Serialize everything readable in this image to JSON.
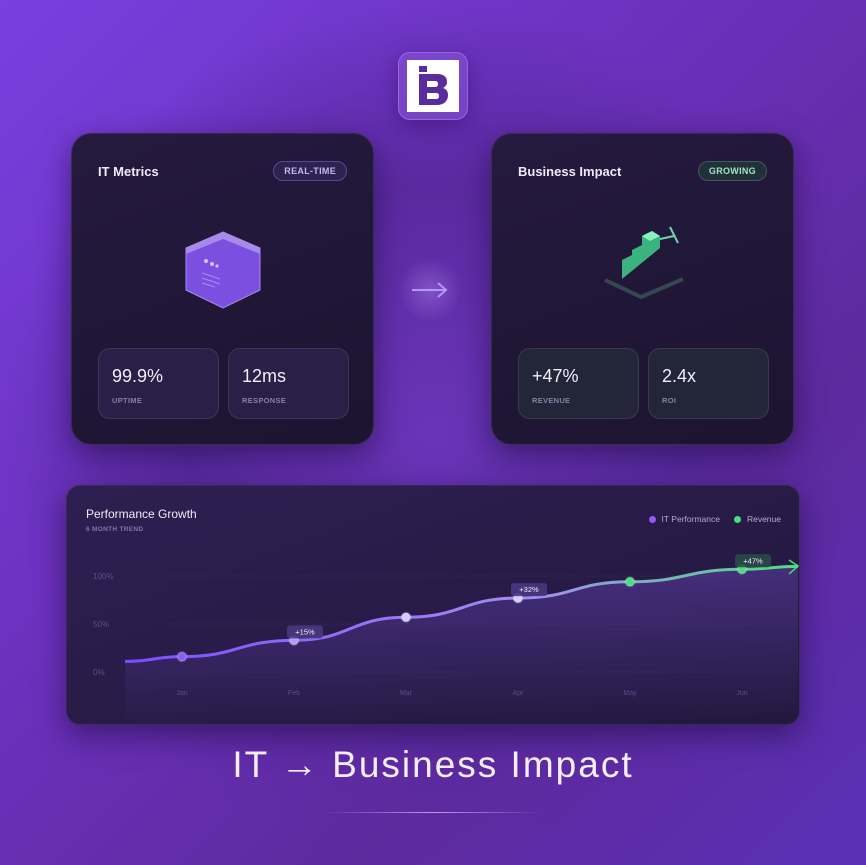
{
  "logo": {
    "letter": "B"
  },
  "it_card": {
    "title": "IT Metrics",
    "badge": "REAL-TIME",
    "icon": "hexagon-server-icon",
    "stats": [
      {
        "value": "99.9%",
        "label": "UPTIME"
      },
      {
        "value": "12ms",
        "label": "RESPONSE"
      }
    ]
  },
  "business_card": {
    "title": "Business Impact",
    "badge": "GROWING",
    "icon": "growth-stairs-icon",
    "stats": [
      {
        "value": "+47%",
        "label": "REVENUE"
      },
      {
        "value": "2.4x",
        "label": "ROI"
      }
    ]
  },
  "flow_arrow": "arrow-right-icon",
  "chart": {
    "title": "Performance Growth",
    "subtitle": "6 MONTH TREND",
    "legend": [
      {
        "label": "IT Performance",
        "color": "#8b5cf6"
      },
      {
        "label": "Revenue",
        "color": "#4ade80"
      }
    ]
  },
  "chart_data": {
    "type": "line",
    "categories": [
      "Jan",
      "Feb",
      "Mar",
      "Apr",
      "May",
      "Jun"
    ],
    "values": [
      16,
      33,
      57,
      77,
      94,
      107
    ],
    "annotations": [
      {
        "category": "Feb",
        "text": "+15%"
      },
      {
        "category": "Apr",
        "text": "+32%"
      },
      {
        "category": "Jun",
        "text": "+47%"
      }
    ],
    "yticks": [
      "0%",
      "50%",
      "100%"
    ],
    "ylim": [
      0,
      100
    ],
    "grid": true,
    "legend_position": "top-right",
    "colors": {
      "start": "#7c4dff",
      "end": "#4ade80"
    }
  },
  "headline": "IT → Business Impact"
}
